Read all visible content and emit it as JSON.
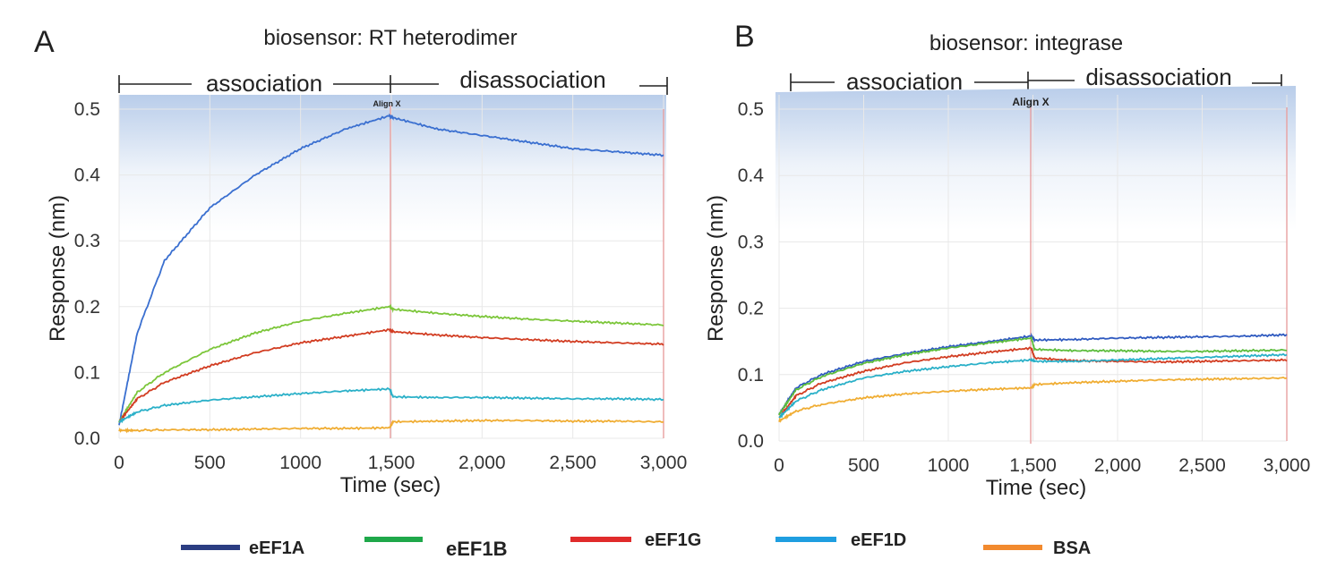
{
  "figure": {
    "legend": [
      {
        "label": "eEF1A",
        "color": "#2b3d82"
      },
      {
        "label": "eEF1B",
        "color": "#1fa84a"
      },
      {
        "label": "eEF1G",
        "color": "#e02b2b"
      },
      {
        "label": "eEF1D",
        "color": "#1f9ee0"
      },
      {
        "label": "BSA",
        "color": "#f28a2e"
      }
    ]
  },
  "panels": [
    {
      "letter": "A",
      "title": "biosensor: RT heterodimer",
      "association_label": "association",
      "disassociation_label": "disassociation",
      "align_label": "Align X",
      "xlabel": "Time (sec)",
      "ylabel": "Response (nm)",
      "x_ticks": [
        "0",
        "500",
        "1000",
        "1,500",
        "2,000",
        "2,500",
        "3,000"
      ],
      "y_ticks": [
        "0.0",
        "0.1",
        "0.2",
        "0.3",
        "0.4",
        "0.5"
      ]
    },
    {
      "letter": "B",
      "title": "biosensor: integrase",
      "association_label": "association",
      "disassociation_label": "disassociation",
      "align_label": "Align X",
      "xlabel": "Time (sec)",
      "ylabel": "Response (nm)",
      "x_ticks": [
        "0",
        "500",
        "1000",
        "1,500",
        "2,000",
        "2,500",
        "3,000"
      ],
      "y_ticks": [
        "0.0",
        "0.1",
        "0.2",
        "0.3",
        "0.4",
        "0.5"
      ]
    }
  ],
  "chart_data": [
    {
      "type": "line",
      "title": "biosensor: RT heterodimer",
      "xlabel": "Time (sec)",
      "ylabel": "Response (nm)",
      "xlim": [
        0,
        3000
      ],
      "ylim": [
        0,
        0.5
      ],
      "grid": true,
      "x": [
        0,
        100,
        250,
        500,
        750,
        1000,
        1250,
        1490,
        1510,
        1750,
        2000,
        2250,
        2500,
        2750,
        3000
      ],
      "series": [
        {
          "name": "eEF1A",
          "color": "#3a6fd0",
          "values": [
            0.02,
            0.16,
            0.27,
            0.35,
            0.4,
            0.44,
            0.47,
            0.49,
            0.487,
            0.47,
            0.46,
            0.45,
            0.44,
            0.435,
            0.43
          ]
        },
        {
          "name": "eEF1B",
          "color": "#7cc63a",
          "values": [
            0.025,
            0.07,
            0.1,
            0.135,
            0.16,
            0.178,
            0.19,
            0.2,
            0.196,
            0.19,
            0.185,
            0.181,
            0.178,
            0.175,
            0.172
          ]
        },
        {
          "name": "eEF1G",
          "color": "#d23d22",
          "values": [
            0.025,
            0.06,
            0.085,
            0.11,
            0.13,
            0.145,
            0.155,
            0.165,
            0.162,
            0.157,
            0.153,
            0.15,
            0.147,
            0.145,
            0.143
          ]
        },
        {
          "name": "eEF1D",
          "color": "#2ab0c8",
          "values": [
            0.025,
            0.04,
            0.05,
            0.058,
            0.063,
            0.068,
            0.072,
            0.075,
            0.063,
            0.062,
            0.062,
            0.061,
            0.06,
            0.06,
            0.059
          ]
        },
        {
          "name": "BSA",
          "color": "#f0ad33",
          "values": [
            0.012,
            0.012,
            0.013,
            0.013,
            0.014,
            0.015,
            0.015,
            0.016,
            0.025,
            0.026,
            0.027,
            0.027,
            0.026,
            0.026,
            0.025
          ]
        }
      ]
    },
    {
      "type": "line",
      "title": "biosensor: integrase",
      "xlabel": "Time (sec)",
      "ylabel": "Response (nm)",
      "xlim": [
        0,
        3000
      ],
      "ylim": [
        0,
        0.5
      ],
      "grid": true,
      "x": [
        0,
        100,
        250,
        500,
        750,
        1000,
        1250,
        1490,
        1510,
        1750,
        2000,
        2250,
        2500,
        2750,
        3000
      ],
      "series": [
        {
          "name": "eEF1A",
          "color": "#2f5ac0",
          "values": [
            0.04,
            0.08,
            0.1,
            0.12,
            0.132,
            0.142,
            0.15,
            0.158,
            0.152,
            0.153,
            0.155,
            0.156,
            0.157,
            0.158,
            0.16
          ]
        },
        {
          "name": "eEF1B",
          "color": "#5dbd3d",
          "values": [
            0.04,
            0.077,
            0.097,
            0.117,
            0.13,
            0.14,
            0.148,
            0.155,
            0.138,
            0.136,
            0.136,
            0.135,
            0.135,
            0.136,
            0.137
          ]
        },
        {
          "name": "eEF1G",
          "color": "#d23d22",
          "values": [
            0.035,
            0.068,
            0.087,
            0.105,
            0.118,
            0.127,
            0.134,
            0.14,
            0.125,
            0.121,
            0.12,
            0.119,
            0.12,
            0.121,
            0.122
          ]
        },
        {
          "name": "eEF1D",
          "color": "#2ab0c8",
          "values": [
            0.035,
            0.06,
            0.077,
            0.095,
            0.105,
            0.112,
            0.118,
            0.122,
            0.12,
            0.12,
            0.122,
            0.124,
            0.126,
            0.128,
            0.13
          ]
        },
        {
          "name": "BSA",
          "color": "#f0ad33",
          "values": [
            0.03,
            0.045,
            0.055,
            0.065,
            0.071,
            0.075,
            0.078,
            0.08,
            0.085,
            0.088,
            0.09,
            0.092,
            0.093,
            0.094,
            0.095
          ]
        }
      ]
    }
  ]
}
